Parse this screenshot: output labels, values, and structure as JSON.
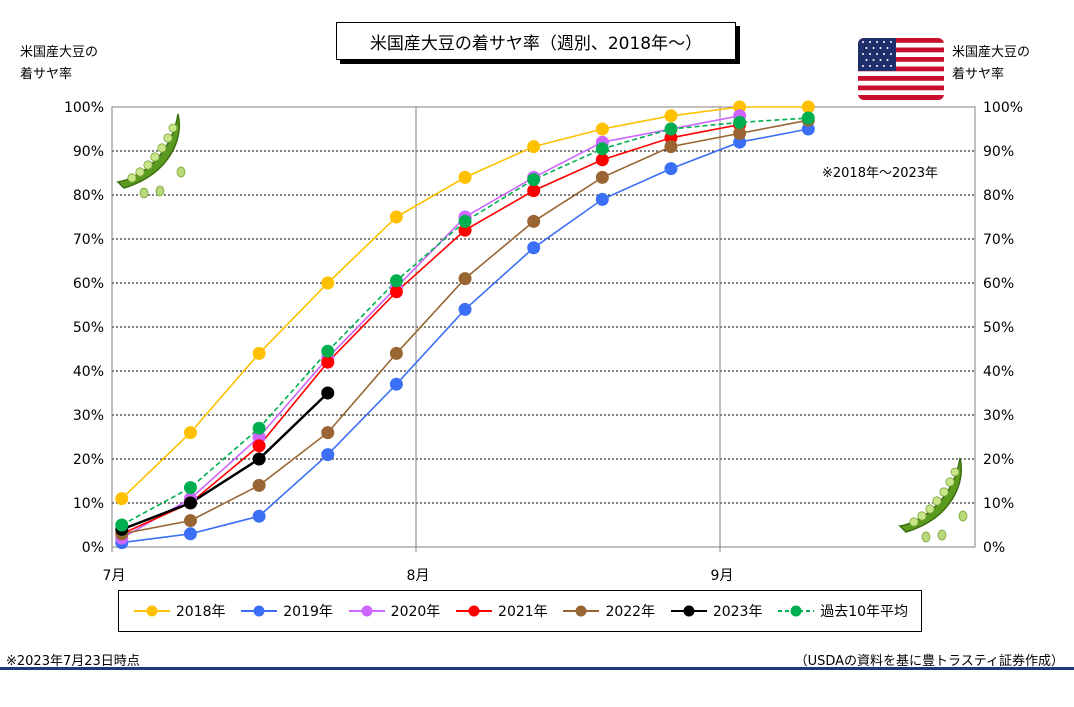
{
  "title": "米国産大豆の着サヤ率（週別、2018年～）",
  "left_axis_title": [
    "米国産大豆の",
    "着サヤ率"
  ],
  "right_axis_title": [
    "米国産大豆の",
    "着サヤ率"
  ],
  "range_note": "※2018年～2023年",
  "footnote_left": "※2023年7月23日時点",
  "footnote_right": "（USDAの資料を基に豊トラスティ証券作成）",
  "icons": [
    "us-flag-icon",
    "pea-pod-icon"
  ],
  "chart_data": {
    "type": "line",
    "title": "米国産大豆の着サヤ率（週別、2018年～）",
    "ylabel": "米国産大豆の着サヤ率",
    "ylim": [
      0,
      100
    ],
    "yticks": [
      "0%",
      "10%",
      "20%",
      "30%",
      "40%",
      "50%",
      "60%",
      "70%",
      "80%",
      "90%",
      "100%"
    ],
    "xlim": [
      0,
      88
    ],
    "xticks": [
      {
        "label": "7月",
        "day": 0
      },
      {
        "label": "8月",
        "day": 31
      },
      {
        "label": "9月",
        "day": 62
      }
    ],
    "grid": "horizontal dotted, vertical solid at month starts",
    "legend_position": "bottom",
    "x_days": [
      1,
      8,
      15,
      22,
      29,
      36,
      43,
      50,
      57,
      64,
      71
    ],
    "series": [
      {
        "name": "2018年",
        "color": "#ffc000",
        "dashed": false,
        "values": [
          11,
          26,
          44,
          60,
          75,
          84,
          91,
          95,
          98,
          100,
          100
        ]
      },
      {
        "name": "2019年",
        "color": "#3b6ff5",
        "dashed": false,
        "values": [
          1,
          3,
          7,
          21,
          37,
          54,
          68,
          79,
          86,
          92,
          95
        ]
      },
      {
        "name": "2020年",
        "color": "#cc66ff",
        "dashed": false,
        "values": [
          2,
          11,
          25,
          43,
          59,
          75,
          84,
          92,
          95,
          98,
          null
        ]
      },
      {
        "name": "2021年",
        "color": "#ff0000",
        "dashed": false,
        "values": [
          3,
          10,
          23,
          42,
          58,
          72,
          81,
          88,
          93,
          96,
          null
        ]
      },
      {
        "name": "2022年",
        "color": "#996633",
        "dashed": false,
        "values": [
          3,
          6,
          14,
          26,
          44,
          61,
          74,
          84,
          91,
          94,
          97
        ]
      },
      {
        "name": "2023年",
        "color": "#000000",
        "dashed": false,
        "values": [
          4,
          10,
          20,
          35,
          null,
          null,
          null,
          null,
          null,
          null,
          null
        ]
      },
      {
        "name": "過去10年平均",
        "color": "#00b050",
        "dashed": true,
        "values": [
          5,
          13.5,
          27,
          44.5,
          60.5,
          74,
          83.5,
          90.5,
          95,
          96.5,
          97.5
        ]
      }
    ]
  }
}
